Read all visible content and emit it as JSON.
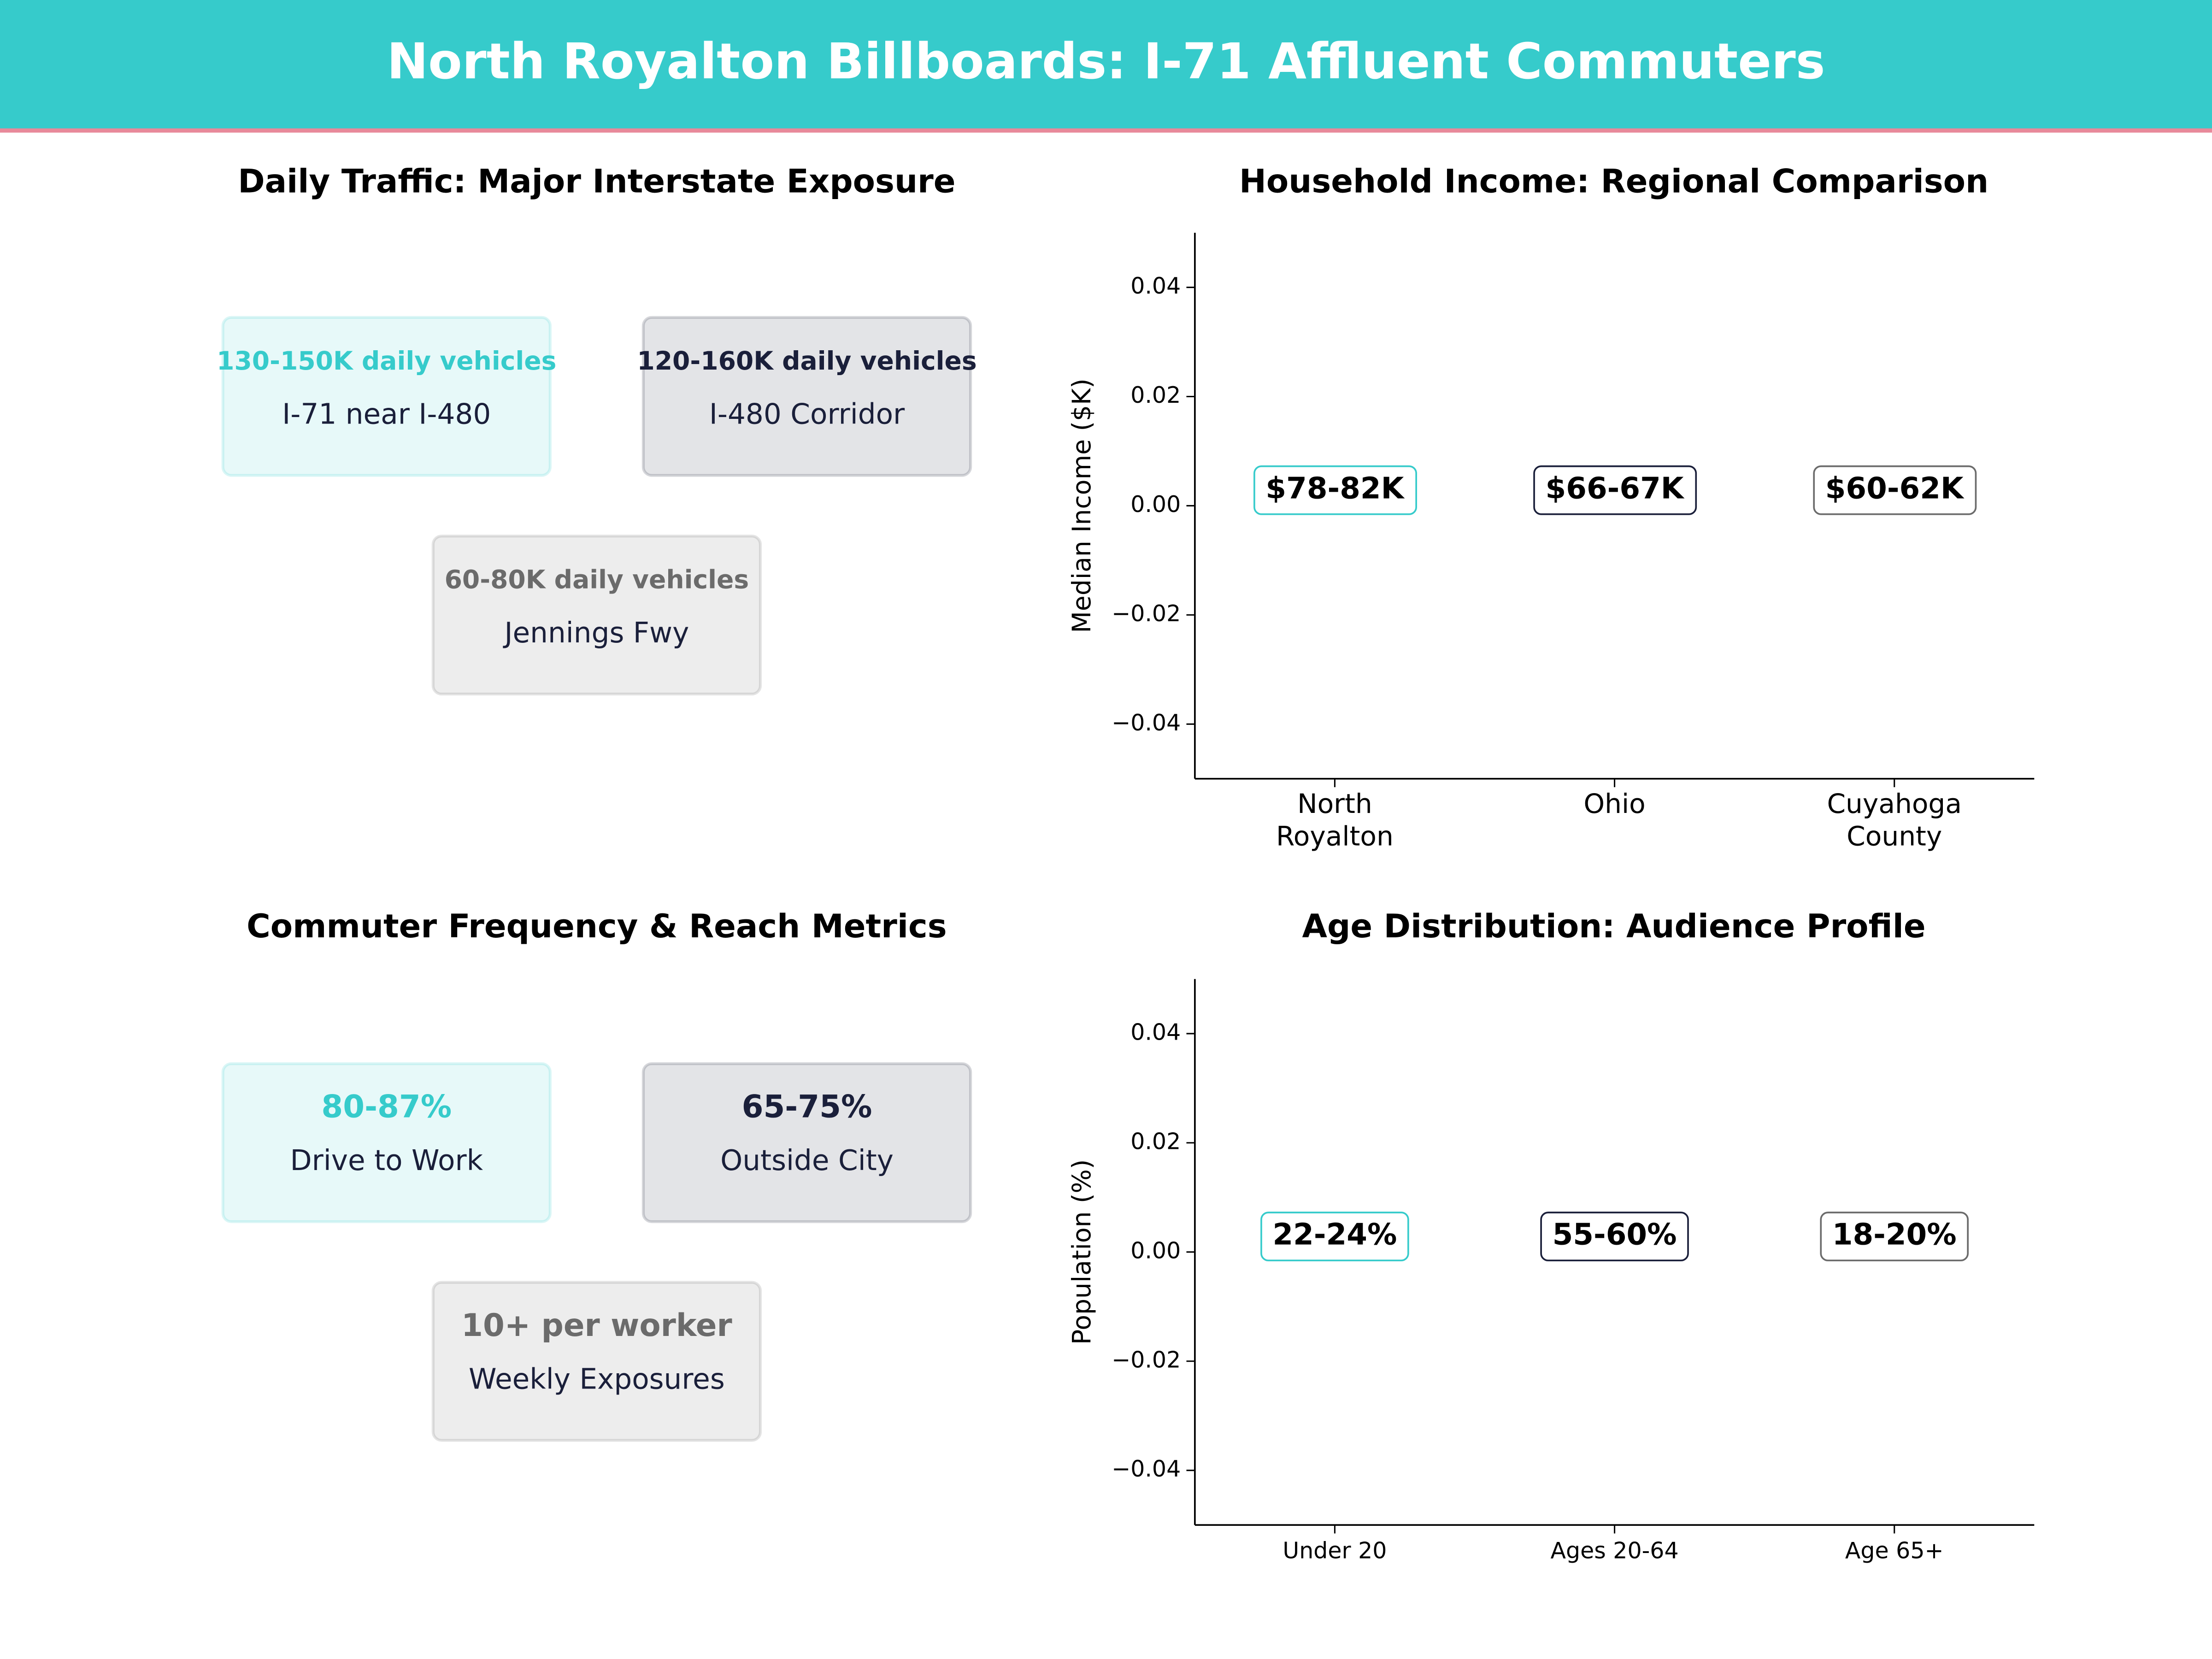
{
  "header": {
    "title": "North Royalton Billboards: I-71 Affluent Commuters"
  },
  "chart_data": [
    {
      "type": "cards",
      "title": "Daily Traffic: Major Interstate Exposure",
      "cards": [
        {
          "value": "130-150K daily vehicles",
          "label": "I-71 near I-480",
          "color": "#36cbcb"
        },
        {
          "value": "120-160K daily vehicles",
          "label": "I-480 Corridor",
          "color": "#1a1f3a"
        },
        {
          "value": "60-80K daily vehicles",
          "label": "Jennings Fwy",
          "color": "#6b6b6b"
        }
      ]
    },
    {
      "type": "labels",
      "title": "Household Income: Regional Comparison",
      "ylabel": "Median Income ($K)",
      "categories": [
        "North\nRoyalton",
        "Ohio",
        "Cuyahoga\nCounty"
      ],
      "labels": [
        "$78-82K",
        "$66-67K",
        "$60-62K"
      ],
      "colors": [
        "#36cbcb",
        "#1a1f3a",
        "#6b6b6b"
      ],
      "ylim": [
        -0.05,
        0.05
      ],
      "yticks": [
        {
          "value": -0.04,
          "label": "−0.04"
        },
        {
          "value": -0.02,
          "label": "−0.02"
        },
        {
          "value": 0,
          "label": "0.00"
        },
        0.02,
        0.04
      ]
    },
    {
      "type": "cards",
      "title": "Commuter Frequency & Reach Metrics",
      "cards": [
        {
          "value": "80-87%",
          "label": "Drive to Work",
          "color": "#36cbcb"
        },
        {
          "value": "65-75%",
          "label": "Outside City",
          "color": "#1a1f3a"
        },
        {
          "value": "10+ per worker",
          "label": "Weekly Exposures",
          "color": "#6b6b6b"
        }
      ]
    },
    {
      "type": "labels",
      "title": "Age Distribution: Audience Profile",
      "ylabel": "Population (%)",
      "categories": [
        "Under 20",
        "Ages 20-64",
        "Age 65+"
      ],
      "labels": [
        "22-24%",
        "55-60%",
        "18-20%"
      ],
      "colors": [
        "#36cbcb",
        "#1a1f3a",
        "#6b6b6b"
      ],
      "ylim": [
        -0.05,
        0.05
      ],
      "yticks": [
        {
          "value": -0.04,
          "label": "−0.04"
        },
        {
          "value": -0.02,
          "label": "−0.02"
        },
        {
          "value": 0,
          "label": "0.00"
        },
        0.02,
        0.04
      ]
    }
  ]
}
